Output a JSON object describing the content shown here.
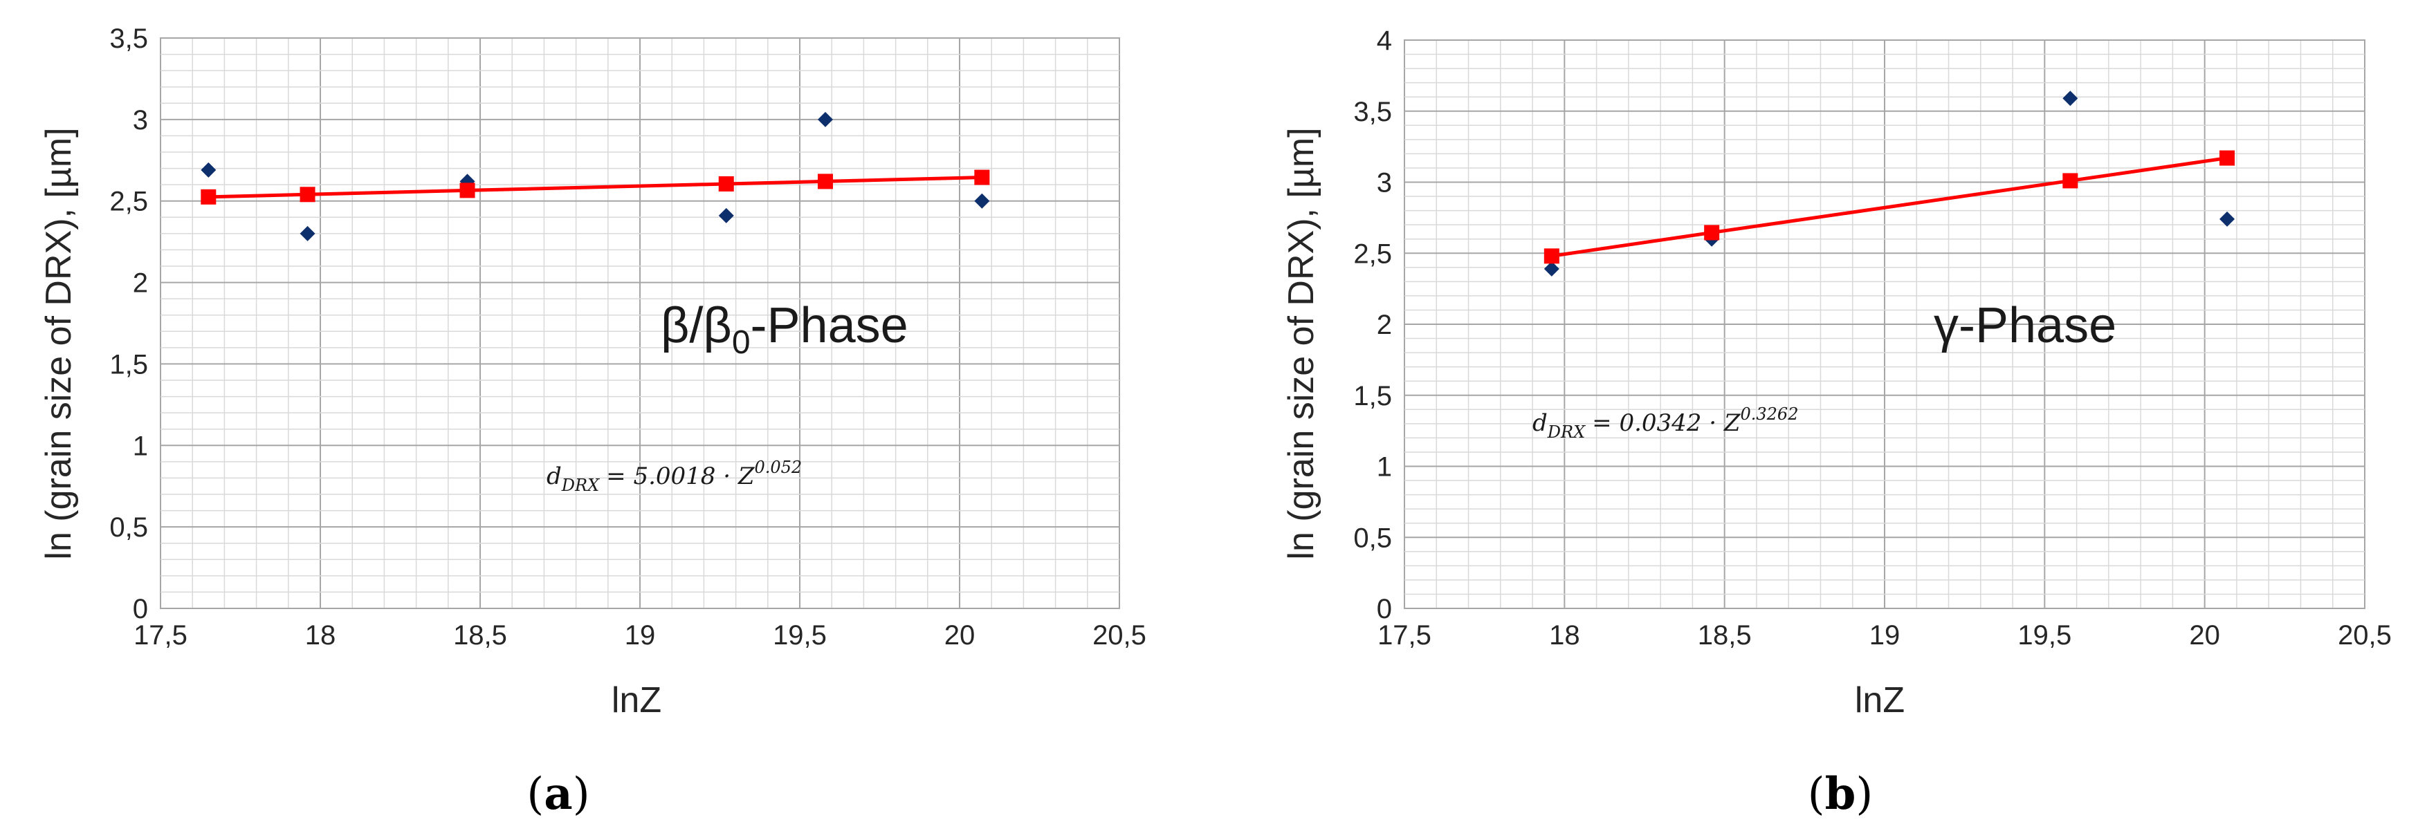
{
  "colors": {
    "fit": "#ff0000",
    "measured": "#0d2f6b",
    "grid_minor": "#d9d9d9",
    "grid_major": "#a6a6a6",
    "text": "#262626"
  },
  "chart_data": [
    {
      "id": "a",
      "type": "scatter",
      "panel_label": "a",
      "title": "β/β0-Phase",
      "title_main": "β/β",
      "title_sub": "0",
      "title_suffix": "-Phase",
      "xlabel": "lnZ",
      "ylabel": "ln (grain size of DRX), [µm]",
      "xlim": [
        17.5,
        20.5
      ],
      "ylim": [
        0,
        3.5
      ],
      "xticks": [
        "17,5",
        "18",
        "18,5",
        "19",
        "19,5",
        "20",
        "20,5"
      ],
      "xtick_values": [
        17.5,
        18,
        18.5,
        19,
        19.5,
        20,
        20.5
      ],
      "yticks": [
        "0",
        "0,5",
        "1",
        "1,5",
        "2",
        "2,5",
        "3",
        "3,5"
      ],
      "ytick_values": [
        0,
        0.5,
        1,
        1.5,
        2,
        2.5,
        3,
        3.5
      ],
      "annotation": {
        "lhs": "d",
        "lhs_sub": "DRX",
        "rhs": "= 5.0018 · Z",
        "exponent": "0.052"
      },
      "series": [
        {
          "name": "measured",
          "marker": "diamond",
          "x": [
            17.65,
            17.96,
            18.46,
            19.27,
            19.58,
            20.07
          ],
          "y": [
            2.69,
            2.3,
            2.62,
            2.41,
            3.0,
            2.5
          ]
        },
        {
          "name": "fit",
          "marker": "square",
          "line": true,
          "x": [
            17.65,
            17.96,
            18.46,
            19.27,
            19.58,
            20.07
          ],
          "y": [
            2.525,
            2.54,
            2.565,
            2.605,
            2.62,
            2.645
          ]
        }
      ]
    },
    {
      "id": "b",
      "type": "scatter",
      "panel_label": "b",
      "title": "γ-Phase",
      "xlabel": "lnZ",
      "ylabel": "ln (grain size of DRX), [µm]",
      "xlim": [
        17.5,
        20.5
      ],
      "ylim": [
        0,
        4
      ],
      "xticks": [
        "17,5",
        "18",
        "18,5",
        "19",
        "19,5",
        "20",
        "20,5"
      ],
      "xtick_values": [
        17.5,
        18,
        18.5,
        19,
        19.5,
        20,
        20.5
      ],
      "yticks": [
        "0",
        "0,5",
        "1",
        "1,5",
        "2",
        "2,5",
        "3",
        "3,5",
        "4"
      ],
      "ytick_values": [
        0,
        0.5,
        1,
        1.5,
        2,
        2.5,
        3,
        3.5,
        4
      ],
      "annotation": {
        "lhs": "d",
        "lhs_sub": "DRX",
        "rhs": "= 0.0342 · Z",
        "exponent": "0.3262"
      },
      "series": [
        {
          "name": "measured",
          "marker": "diamond",
          "x": [
            17.96,
            18.46,
            19.58,
            20.07
          ],
          "y": [
            2.39,
            2.6,
            3.59,
            2.74
          ]
        },
        {
          "name": "fit",
          "marker": "square",
          "line": true,
          "x": [
            17.96,
            18.46,
            19.58,
            20.07
          ],
          "y": [
            2.48,
            2.645,
            3.01,
            3.17
          ]
        }
      ]
    }
  ]
}
